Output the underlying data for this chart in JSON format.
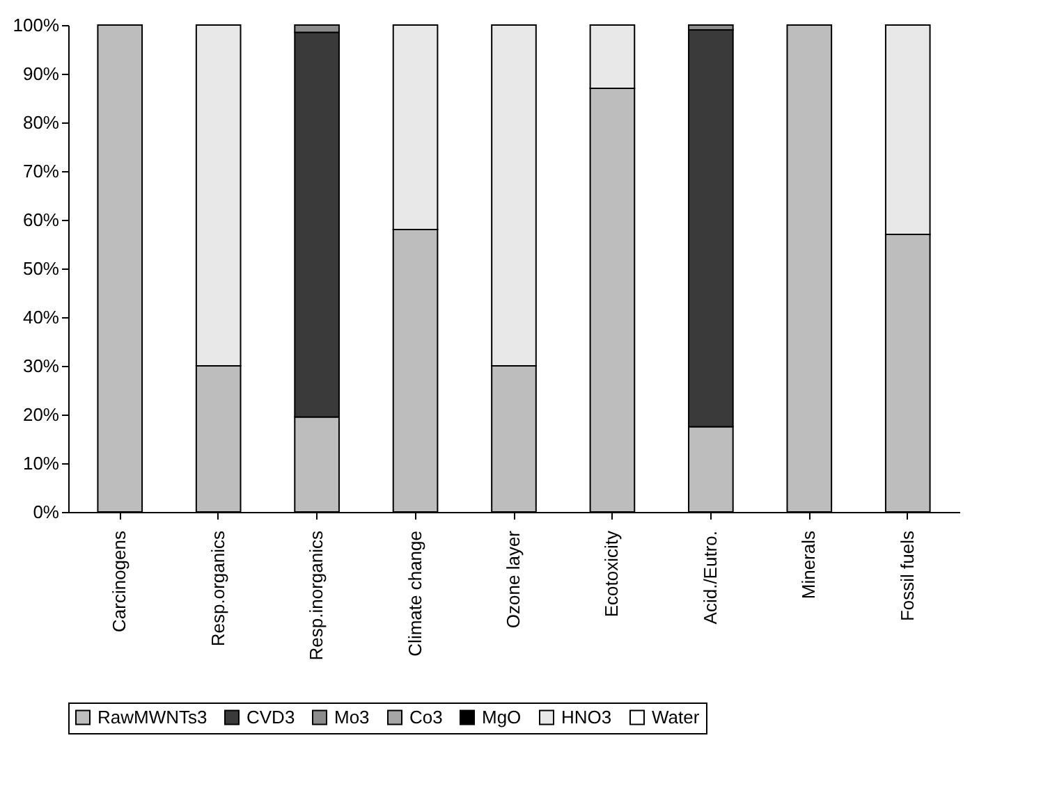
{
  "chart_data": {
    "type": "bar",
    "stacked": true,
    "categories": [
      "Carcinogens",
      "Resp.organics",
      "Resp.inorganics",
      "Climate change",
      "Ozone layer",
      "Ecotoxicity",
      "Acid./Eutro.",
      "Minerals",
      "Fossil fuels"
    ],
    "series": [
      {
        "name": "RawMWNTs3",
        "color": "#bdbdbd",
        "values": [
          100,
          30,
          19.5,
          58,
          30,
          87,
          17.5,
          100,
          57
        ]
      },
      {
        "name": "CVD3",
        "color": "#3a3a3a",
        "values": [
          0,
          0,
          79,
          0,
          0,
          0,
          81.5,
          0,
          0
        ]
      },
      {
        "name": "Mo3",
        "color": "#8c8c8c",
        "values": [
          0,
          0,
          1.5,
          0,
          0,
          0,
          1,
          0,
          0
        ]
      },
      {
        "name": "Co3",
        "color": "#a6a6a6",
        "values": [
          0,
          0,
          0,
          0,
          0,
          0,
          0,
          0,
          0
        ]
      },
      {
        "name": "MgO",
        "color": "#000000",
        "values": [
          0,
          0,
          0,
          0,
          0,
          0,
          0,
          0,
          0
        ]
      },
      {
        "name": "HNO3",
        "color": "#e8e8e8",
        "values": [
          0,
          70,
          0,
          42,
          70,
          13,
          0,
          0,
          43
        ]
      },
      {
        "name": "Water",
        "color": "#ffffff",
        "values": [
          0,
          0,
          0,
          0,
          0,
          0,
          0,
          0,
          0
        ]
      }
    ],
    "ylim": [
      0,
      100
    ],
    "yticks": [
      {
        "value": 0,
        "label": "0%"
      },
      {
        "value": 10,
        "label": "10%"
      },
      {
        "value": 20,
        "label": "20%"
      },
      {
        "value": 30,
        "label": "30%"
      },
      {
        "value": 40,
        "label": "40%"
      },
      {
        "value": 50,
        "label": "50%"
      },
      {
        "value": 60,
        "label": "60%"
      },
      {
        "value": 70,
        "label": "70%"
      },
      {
        "value": 80,
        "label": "80%"
      },
      {
        "value": 90,
        "label": "90%"
      },
      {
        "value": 100,
        "label": "100%"
      }
    ],
    "grid": false,
    "legend": "bottom"
  }
}
